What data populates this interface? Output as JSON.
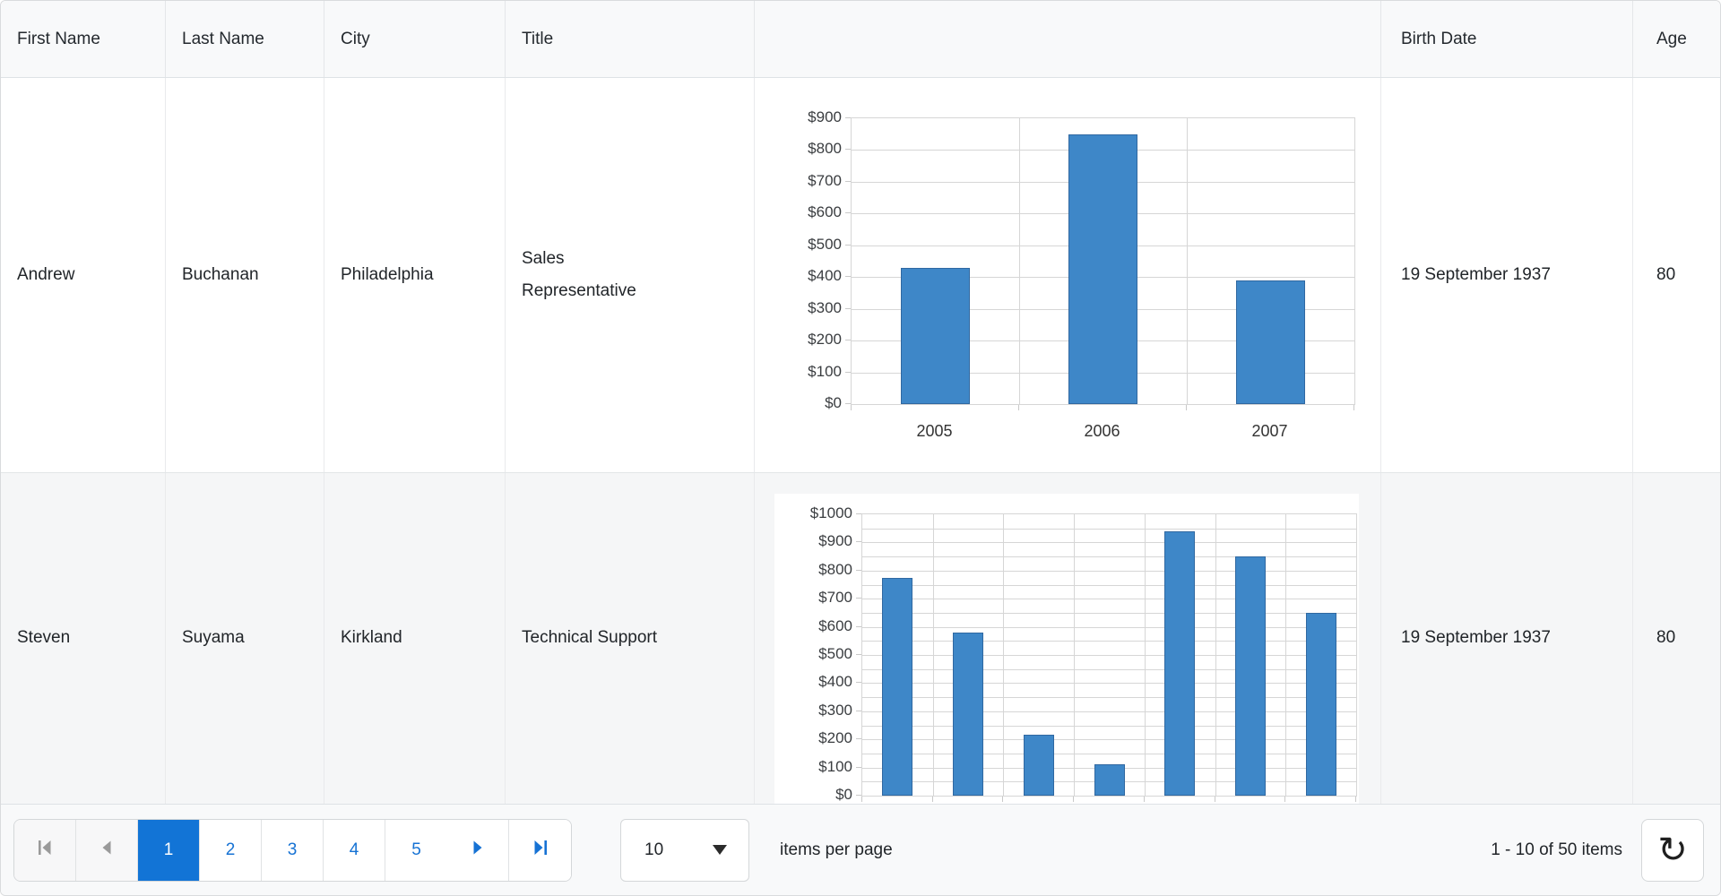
{
  "table": {
    "header": {
      "columns": [
        "First Name",
        "Last Name",
        "City",
        "Title",
        "",
        "Birth Date",
        "Age"
      ]
    },
    "rows": [
      {
        "first_name": "Andrew",
        "last_name": "Buchanan",
        "city": "Philadelphia",
        "title": "Sales Representative",
        "birth_date": "19 September 1937",
        "age": "80"
      },
      {
        "first_name": "Steven",
        "last_name": "Suyama",
        "city": "Kirkland",
        "title": "Technical Support",
        "birth_date": "19 September 1937",
        "age": "80"
      }
    ]
  },
  "chart_data": [
    {
      "type": "bar",
      "categories": [
        "2005",
        "2006",
        "2007"
      ],
      "values": [
        430,
        850,
        390
      ],
      "ylim": [
        0,
        900
      ],
      "ytick_step": 100,
      "gridline_step": 100,
      "ytick_labels": [
        "$0",
        "$100",
        "$200",
        "$300",
        "$400",
        "$500",
        "$600",
        "$700",
        "$800",
        "$900"
      ],
      "x_axis_labels_visible": true,
      "legend": "none",
      "grid": true,
      "bar_color": "#3e87c8"
    },
    {
      "type": "bar",
      "categories": [
        "",
        "",
        "",
        "",
        "",
        "",
        ""
      ],
      "values": [
        775,
        580,
        215,
        110,
        940,
        850,
        650
      ],
      "ylim": [
        0,
        1000
      ],
      "ytick_step": 100,
      "gridline_step": 50,
      "ytick_labels": [
        "$0",
        "$100",
        "$200",
        "$300",
        "$400",
        "$500",
        "$600",
        "$700",
        "$800",
        "$900",
        "$1000"
      ],
      "x_axis_labels_visible": false,
      "legend": "none",
      "grid": true,
      "bar_color": "#3e87c8"
    }
  ],
  "pager": {
    "pages": [
      "1",
      "2",
      "3",
      "4",
      "5"
    ],
    "selected_page": "1",
    "page_size_value": "10",
    "items_per_page_label": "items per page",
    "range_label": "1 - 10 of 50 items",
    "icons": {
      "first_page": "skip-to-first-arrow",
      "previous_page": "left-triangle",
      "next_page": "right-triangle",
      "last_page": "skip-to-last-arrow",
      "dropdown": "down-caret",
      "refresh": "↻"
    }
  },
  "colors": {
    "selected_page_bg": "#1274d6",
    "link_blue": "#1672d4",
    "disabled_gray": "#9a9a9a",
    "bar_fill": "#3e87c8",
    "bar_stroke": "#3068a1",
    "gridline": "#d6d6d6",
    "header_bg": "#f8f9fa",
    "alt_row_bg": "#f5f6f7"
  }
}
